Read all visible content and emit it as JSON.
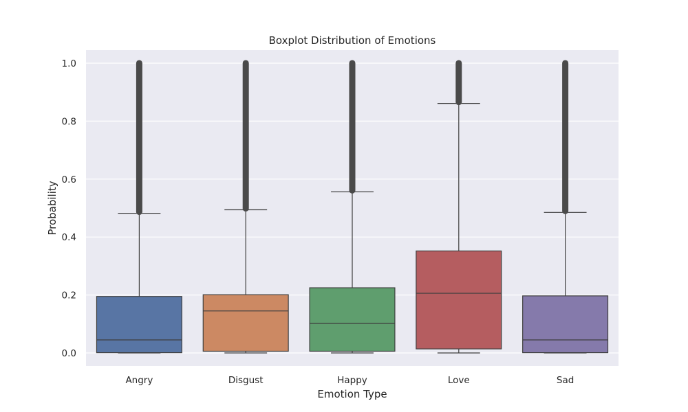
{
  "chart_data": {
    "type": "box",
    "title": "Boxplot Distribution of Emotions",
    "xlabel": "Emotion Type",
    "ylabel": "Probability",
    "ylim": [
      -0.045,
      1.045
    ],
    "yticks": [
      0.0,
      0.2,
      0.4,
      0.6,
      0.8,
      1.0
    ],
    "ytick_labels": [
      "0.0",
      "0.2",
      "0.4",
      "0.6",
      "0.8",
      "1.0"
    ],
    "grid": true,
    "background": "#eaeaf2",
    "categories": [
      "Angry",
      "Disgust",
      "Happy",
      "Love",
      "Sad"
    ],
    "boxes": [
      {
        "category": "Angry",
        "color": "#5875a4",
        "whisker_low": 0.0,
        "q1": 0.001,
        "median": 0.045,
        "q3": 0.195,
        "whisker_high": 0.482,
        "outliers_from": 0.482,
        "outliers_to": 1.0
      },
      {
        "category": "Disgust",
        "color": "#cc8963",
        "whisker_low": 0.0,
        "q1": 0.006,
        "median": 0.145,
        "q3": 0.201,
        "whisker_high": 0.494,
        "outliers_from": 0.494,
        "outliers_to": 1.0
      },
      {
        "category": "Happy",
        "color": "#5f9e6e",
        "whisker_low": 0.0,
        "q1": 0.006,
        "median": 0.102,
        "q3": 0.225,
        "whisker_high": 0.556,
        "outliers_from": 0.556,
        "outliers_to": 1.0
      },
      {
        "category": "Love",
        "color": "#b55d60",
        "whisker_low": 0.0,
        "q1": 0.014,
        "median": 0.206,
        "q3": 0.352,
        "whisker_high": 0.861,
        "outliers_from": 0.861,
        "outliers_to": 1.0
      },
      {
        "category": "Sad",
        "color": "#857aab",
        "whisker_low": 0.0,
        "q1": 0.001,
        "median": 0.045,
        "q3": 0.197,
        "whisker_high": 0.485,
        "outliers_from": 0.485,
        "outliers_to": 1.0
      }
    ]
  }
}
